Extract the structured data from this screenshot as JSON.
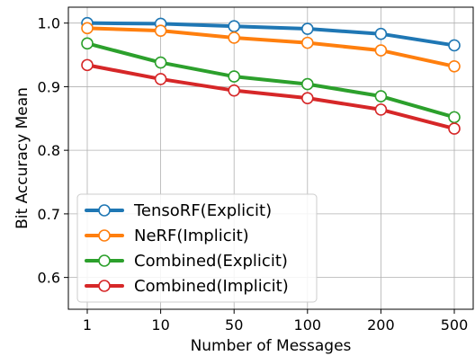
{
  "chart_data": {
    "type": "line",
    "categories": [
      "1",
      "10",
      "50",
      "100",
      "200",
      "500"
    ],
    "xlabel": "Number of Messages",
    "ylabel": "Bit Accuracy Mean",
    "ylim": [
      0.55,
      1.025
    ],
    "yticks": [
      0.6,
      0.7,
      0.8,
      0.9,
      1.0
    ],
    "ytick_labels": [
      "0.6",
      "0.7",
      "0.8",
      "0.9",
      "1.0"
    ],
    "grid": true,
    "legend_position": "lower-left",
    "series": [
      {
        "name": "TensoRF(Explicit)",
        "color": "#1f77b4",
        "values": [
          1.0,
          0.999,
          0.995,
          0.991,
          0.983,
          0.965
        ]
      },
      {
        "name": "NeRF(Implicit)",
        "color": "#ff7f0e",
        "values": [
          0.992,
          0.988,
          0.977,
          0.969,
          0.957,
          0.932
        ]
      },
      {
        "name": "Combined(Explicit)",
        "color": "#2ca02c",
        "values": [
          0.968,
          0.938,
          0.916,
          0.904,
          0.885,
          0.852
        ]
      },
      {
        "name": "Combined(Implicit)",
        "color": "#d62728",
        "values": [
          0.934,
          0.912,
          0.894,
          0.882,
          0.864,
          0.834
        ]
      }
    ]
  }
}
